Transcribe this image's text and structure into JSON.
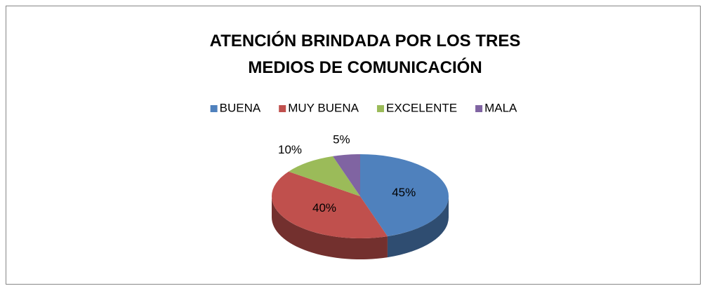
{
  "chart_data": {
    "type": "pie3d",
    "title": "ATENCIÓN BRINDADA POR LOS TRES MEDIOS DE COMUNICACIÓN",
    "categories": [
      "BUENA",
      "MUY BUENA",
      "EXCELENTE",
      "MALA"
    ],
    "values": [
      45,
      40,
      10,
      5
    ],
    "value_labels": [
      "45%",
      "40%",
      "10%",
      "5%"
    ],
    "colors": [
      "#4f81bd",
      "#c0504d",
      "#9bbb59",
      "#8064a2"
    ],
    "legend": "top"
  }
}
